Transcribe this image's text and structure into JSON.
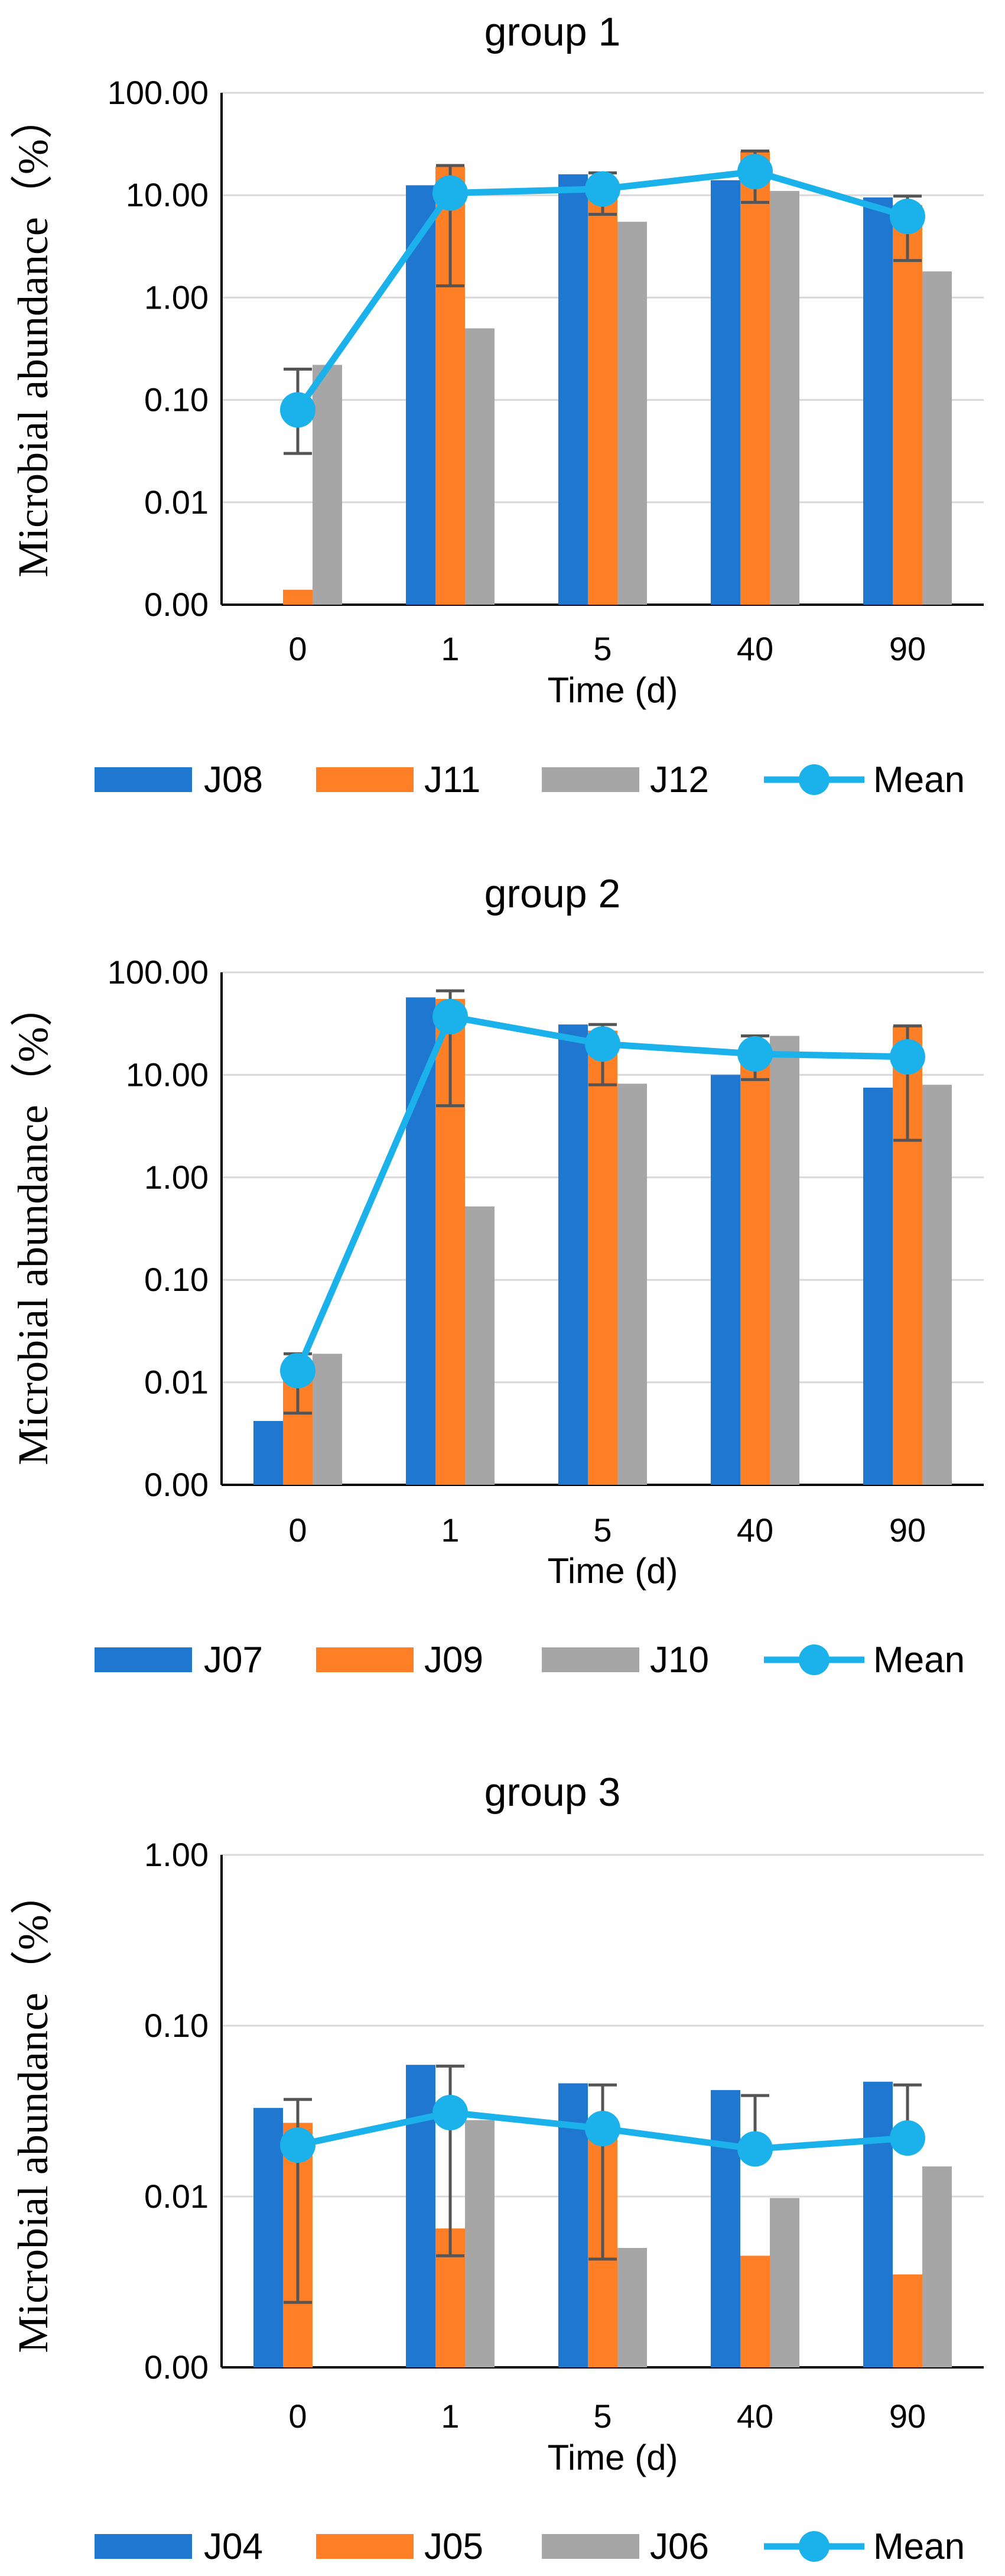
{
  "colors": {
    "series1": "#1f77d0",
    "series2": "#ff7f27",
    "series3": "#a6a6a6",
    "mean": "#1bb2ec"
  },
  "chart_data": [
    {
      "type": "bar",
      "title": "group 1",
      "xlabel": "Time (d)",
      "ylabel": "Microbial abundance（%）",
      "yscale": "log",
      "ylim": [
        0.001,
        100
      ],
      "yticks": [
        0.001,
        0.01,
        0.1,
        1,
        10,
        100
      ],
      "ytick_labels": [
        "0.00",
        "0.01",
        "0.10",
        "1.00",
        "10.00",
        "100.00"
      ],
      "categories": [
        "0",
        "1",
        "5",
        "40",
        "90"
      ],
      "series": [
        {
          "name": "J08",
          "values": [
            null,
            12.5,
            16,
            14,
            9.5
          ]
        },
        {
          "name": "J11",
          "values": [
            0.0014,
            19,
            13,
            27,
            8
          ]
        },
        {
          "name": "J12",
          "values": [
            0.22,
            0.5,
            5.5,
            11,
            1.8
          ]
        }
      ],
      "mean": {
        "name": "Mean",
        "values": [
          0.08,
          10.5,
          11.5,
          17,
          6.2
        ]
      },
      "mean_error": [
        [
          0.03,
          0.2
        ],
        [
          1.3,
          19.5
        ],
        [
          6.5,
          16.5
        ],
        [
          8.5,
          27
        ],
        [
          2.3,
          9.8
        ]
      ],
      "legend": [
        "J08",
        "J11",
        "J12",
        "Mean"
      ]
    },
    {
      "type": "bar",
      "title": "group 2",
      "xlabel": "Time (d)",
      "ylabel": "Microbial abundance（%）",
      "yscale": "log",
      "ylim": [
        0.001,
        100
      ],
      "yticks": [
        0.001,
        0.01,
        0.1,
        1,
        10,
        100
      ],
      "ytick_labels": [
        "0.00",
        "0.01",
        "0.10",
        "1.00",
        "10.00",
        "100.00"
      ],
      "categories": [
        "0",
        "1",
        "5",
        "40",
        "90"
      ],
      "series": [
        {
          "name": "J07",
          "values": [
            0.0042,
            57,
            31,
            10,
            7.5
          ]
        },
        {
          "name": "J09",
          "values": [
            0.015,
            55,
            27,
            17,
            30
          ]
        },
        {
          "name": "J10",
          "values": [
            0.019,
            0.52,
            8.2,
            24,
            8
          ]
        }
      ],
      "mean": {
        "name": "Mean",
        "values": [
          0.013,
          37,
          20,
          16,
          15
        ]
      },
      "mean_error": [
        [
          0.005,
          0.019
        ],
        [
          5,
          66
        ],
        [
          8,
          31
        ],
        [
          9,
          24
        ],
        [
          2.3,
          30
        ]
      ],
      "legend": [
        "J07",
        "J09",
        "J10",
        "Mean"
      ]
    },
    {
      "type": "bar",
      "title": "group 3",
      "xlabel": "Time (d)",
      "ylabel": "Microbial abundance（%）",
      "yscale": "log",
      "ylim": [
        0.001,
        1
      ],
      "yticks": [
        0.001,
        0.01,
        0.1,
        1
      ],
      "ytick_labels": [
        "0.00",
        "0.01",
        "0.10",
        "1.00"
      ],
      "categories": [
        "0",
        "1",
        "5",
        "40",
        "90"
      ],
      "series": [
        {
          "name": "J04",
          "values": [
            0.033,
            0.059,
            0.046,
            0.042,
            0.047
          ]
        },
        {
          "name": "J05",
          "values": [
            0.027,
            0.0065,
            0.024,
            0.0045,
            0.0035
          ]
        },
        {
          "name": "J06",
          "values": [
            null,
            0.028,
            0.005,
            0.0098,
            0.015
          ]
        }
      ],
      "mean": {
        "name": "Mean",
        "values": [
          0.02,
          0.031,
          0.025,
          0.019,
          0.022
        ]
      },
      "mean_error": [
        [
          0.0024,
          0.037
        ],
        [
          0.0045,
          0.058
        ],
        [
          0.0043,
          0.045
        ],
        [
          null,
          0.039
        ],
        [
          null,
          0.045
        ]
      ],
      "legend": [
        "J04",
        "J05",
        "J06",
        "Mean"
      ]
    }
  ]
}
